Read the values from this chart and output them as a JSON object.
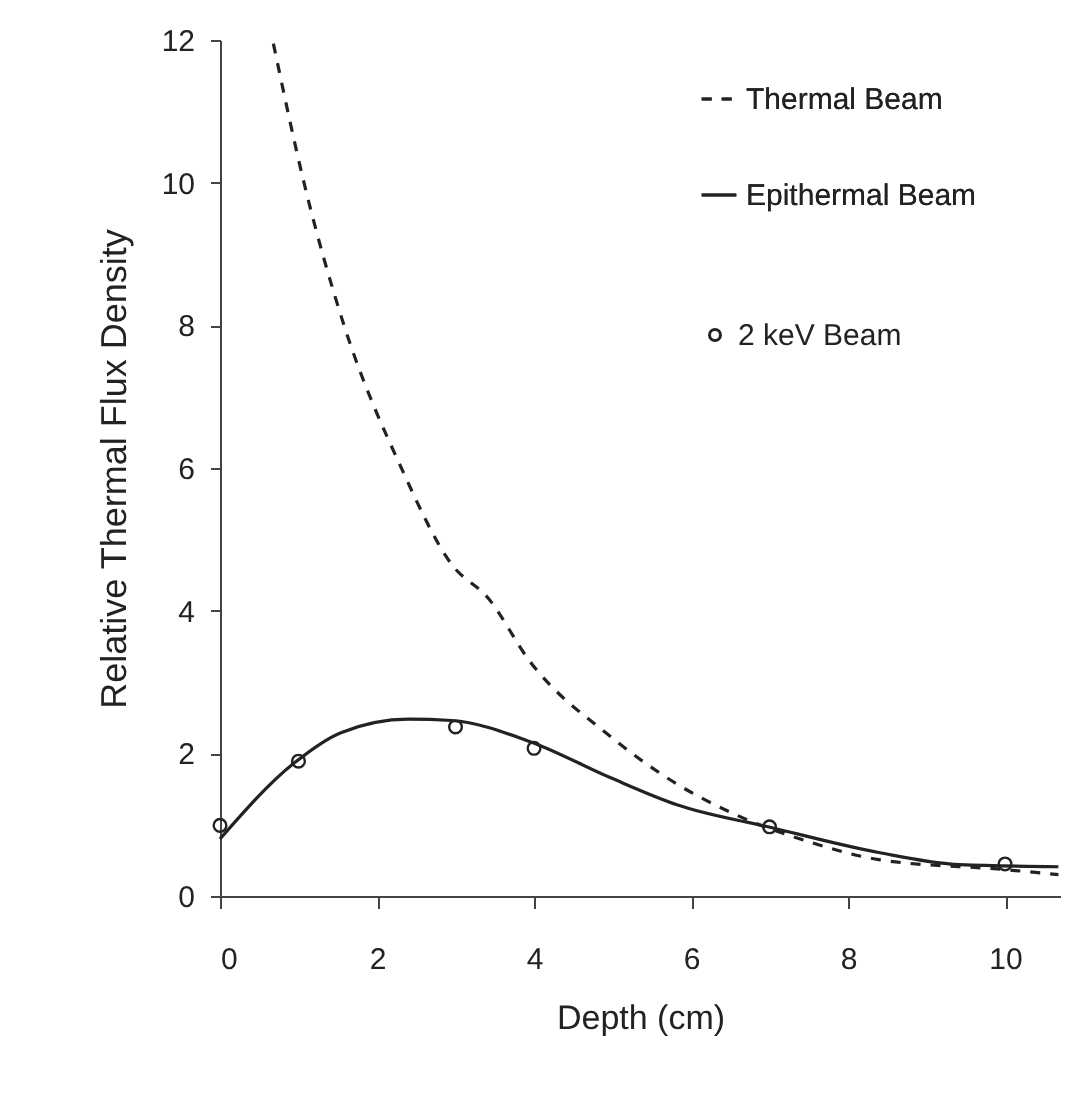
{
  "chart_data": {
    "type": "line",
    "xlabel": "Depth (cm)",
    "ylabel": "Relative Thermal Flux Density",
    "xlim": [
      0,
      10.7
    ],
    "ylim": [
      0,
      12
    ],
    "xticks": [
      0,
      2,
      4,
      6,
      8,
      10
    ],
    "yticks": [
      0,
      2,
      4,
      6,
      8,
      10,
      12
    ],
    "grid": false,
    "legend": "top right",
    "series": [
      {
        "name": "Thermal Beam",
        "type": "line",
        "line_style": "dashed",
        "color": "#222222",
        "x": [
          0.68,
          1.07,
          1.58,
          2.31,
          2.95,
          3.42,
          3.94,
          4.97,
          5.82,
          6.59,
          7.53,
          8.39,
          10,
          10.68
        ],
        "values": [
          11.95,
          10,
          8,
          6,
          4.65,
          4.17,
          3.3,
          2.24,
          1.57,
          1.13,
          0.75,
          0.51,
          0.37,
          0.3
        ]
      },
      {
        "name": "Epithermal Beam",
        "type": "line",
        "line_style": "solid",
        "color": "#222222",
        "x": [
          0,
          0.94,
          1.54,
          2.4,
          2.95,
          3.96,
          4.97,
          5.82,
          7.02,
          8.39,
          9.42,
          10.68
        ],
        "values": [
          0.8,
          1.86,
          2.29,
          2.48,
          2.46,
          2.16,
          1.66,
          1.28,
          0.96,
          0.61,
          0.44,
          0.41
        ]
      },
      {
        "name": "2 keV Beam",
        "type": "scatter",
        "marker": "circle",
        "color": "#222222",
        "x": [
          0,
          1,
          3,
          4,
          7,
          10
        ],
        "values": [
          0.99,
          1.89,
          2.37,
          2.07,
          0.97,
          0.45
        ]
      }
    ]
  }
}
